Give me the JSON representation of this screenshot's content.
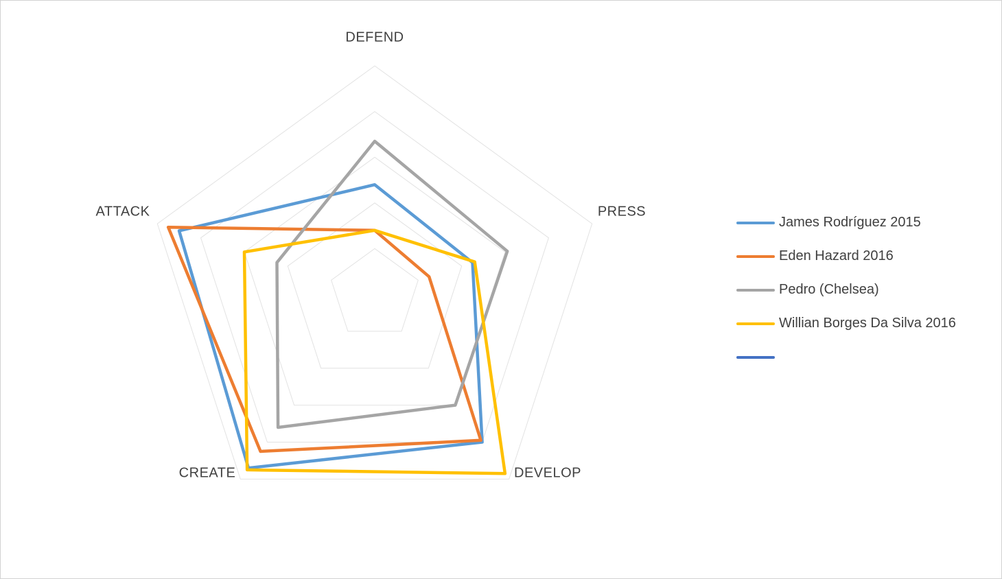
{
  "chart_data": {
    "type": "radar",
    "title": "",
    "categories": [
      "DEFEND",
      "PRESS",
      "DEVELOP",
      "CREATE",
      "ATTACK"
    ],
    "axis_range": [
      0,
      100
    ],
    "grid_rings": 5,
    "grid_on": true,
    "grid_color": "#e2e2e2",
    "label_color": "#404040",
    "legend_position": "right",
    "series": [
      {
        "name": "James Rodríguez 2015",
        "color": "#5B9BD5",
        "values": [
          48,
          45,
          80,
          94,
          90
        ]
      },
      {
        "name": "Eden Hazard 2016",
        "color": "#ED7D31",
        "values": [
          28,
          25,
          79,
          85,
          95
        ]
      },
      {
        "name": "Pedro (Chelsea)",
        "color": "#A5A5A5",
        "values": [
          67,
          61,
          60,
          72,
          45
        ]
      },
      {
        "name": "Willian Borges Da Silva 2016",
        "color": "#FFC000",
        "values": [
          28,
          46,
          97,
          95,
          60
        ]
      },
      {
        "name": "",
        "color": "#4472C4",
        "values": null
      }
    ]
  }
}
